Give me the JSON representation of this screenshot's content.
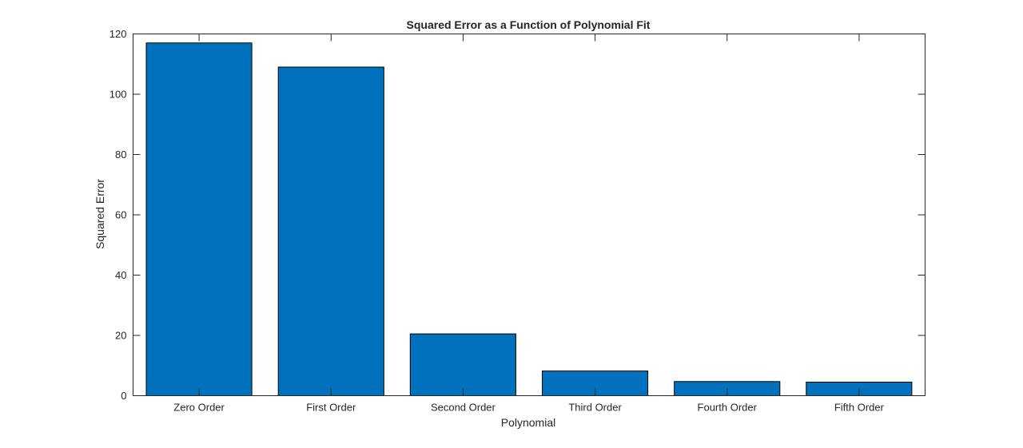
{
  "chart_data": {
    "type": "bar",
    "title": "Squared Error as a Function of Polynomial Fit",
    "xlabel": "Polynomial",
    "ylabel": "Squared Error",
    "categories": [
      "Zero Order",
      "First Order",
      "Second Order",
      "Third Order",
      "Fourth Order",
      "Fifth Order"
    ],
    "values": [
      117,
      109,
      20.5,
      8.2,
      4.7,
      4.5
    ],
    "ylim": [
      0,
      120
    ],
    "yticks": [
      0,
      20,
      40,
      60,
      80,
      100,
      120
    ],
    "grid": false,
    "legend": "none",
    "bar_color": "#0072BD",
    "bar_edge_color": "#000000",
    "axis_color": "#262626"
  }
}
